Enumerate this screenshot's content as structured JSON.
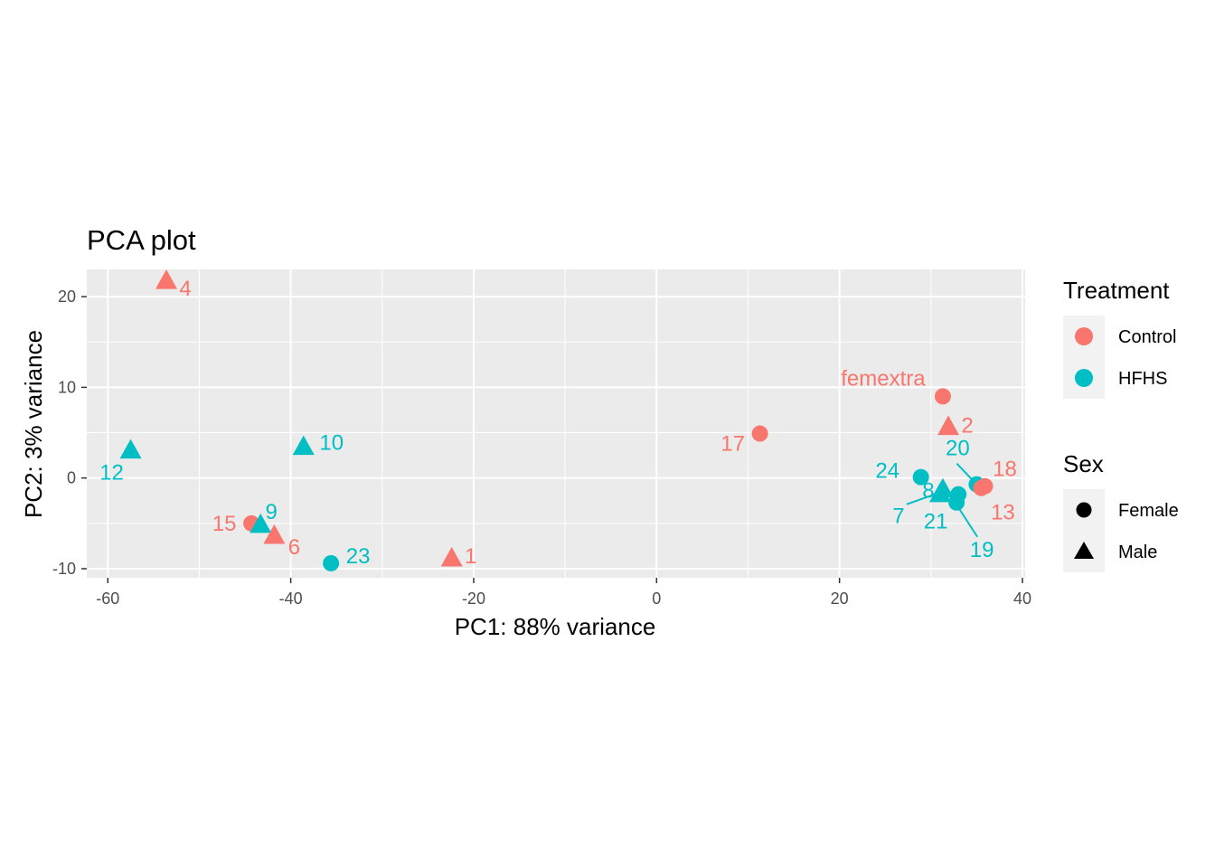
{
  "chart_data": {
    "type": "scatter",
    "title": "PCA plot",
    "xlabel": "PC1: 88% variance",
    "ylabel": "PC2: 3% variance",
    "xlim": [
      -62.3,
      40.3
    ],
    "ylim": [
      -11.0,
      23.0
    ],
    "xticks": [
      -60,
      -40,
      -20,
      0,
      20,
      40
    ],
    "yticks": [
      -10,
      0,
      10,
      20
    ],
    "grid": true,
    "colors": {
      "Control": "#F8766D",
      "HFHS": "#00BFC4"
    },
    "legend": {
      "placement": "right",
      "treatment_title": "Treatment",
      "treatment_items": [
        "Control",
        "HFHS"
      ],
      "sex_title": "Sex",
      "sex_items": [
        "Female",
        "Male"
      ]
    },
    "points": [
      {
        "label": "4",
        "x": -53.6,
        "y": 21.8,
        "treatment": "Control",
        "sex": "Male"
      },
      {
        "label": "12",
        "x": -57.5,
        "y": 3.1,
        "treatment": "HFHS",
        "sex": "Male"
      },
      {
        "label": "10",
        "x": -38.6,
        "y": 3.5,
        "treatment": "HFHS",
        "sex": "Male"
      },
      {
        "label": "15",
        "x": -44.3,
        "y": -5.0,
        "treatment": "Control",
        "sex": "Female"
      },
      {
        "label": "9",
        "x": -43.3,
        "y": -5.1,
        "treatment": "HFHS",
        "sex": "Male"
      },
      {
        "label": "6",
        "x": -41.8,
        "y": -6.3,
        "treatment": "Control",
        "sex": "Male"
      },
      {
        "label": "23",
        "x": -35.6,
        "y": -9.4,
        "treatment": "HFHS",
        "sex": "Female"
      },
      {
        "label": "1",
        "x": -22.4,
        "y": -8.8,
        "treatment": "Control",
        "sex": "Male"
      },
      {
        "label": "17",
        "x": 11.3,
        "y": 4.9,
        "treatment": "Control",
        "sex": "Female"
      },
      {
        "label": "femextra",
        "x": 31.3,
        "y": 9.0,
        "treatment": "Control",
        "sex": "Female"
      },
      {
        "label": "2",
        "x": 31.9,
        "y": 5.7,
        "treatment": "Control",
        "sex": "Male"
      },
      {
        "label": "24",
        "x": 28.9,
        "y": 0.1,
        "treatment": "HFHS",
        "sex": "Female"
      },
      {
        "label": "8",
        "x": 31.3,
        "y": -1.2,
        "treatment": "HFHS",
        "sex": "Male"
      },
      {
        "label": "7",
        "x": 31.0,
        "y": -1.7,
        "treatment": "HFHS",
        "sex": "Male"
      },
      {
        "label": "20",
        "x": 35.0,
        "y": -0.7,
        "treatment": "HFHS",
        "sex": "Female"
      },
      {
        "label": "18",
        "x": 35.9,
        "y": -0.9,
        "treatment": "Control",
        "sex": "Female"
      },
      {
        "label": "13",
        "x": 35.5,
        "y": -1.1,
        "treatment": "Control",
        "sex": "Female"
      },
      {
        "label": "21",
        "x": 33.0,
        "y": -1.8,
        "treatment": "HFHS",
        "sex": "Female"
      },
      {
        "label": "19",
        "x": 32.8,
        "y": -2.7,
        "treatment": "HFHS",
        "sex": "Female"
      }
    ]
  }
}
